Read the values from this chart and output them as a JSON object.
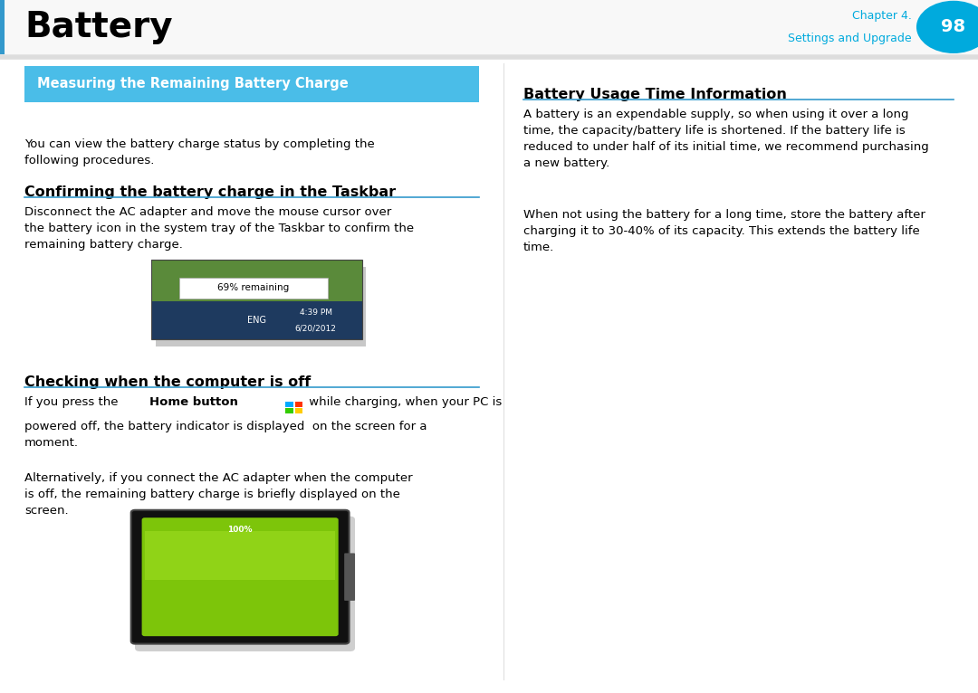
{
  "page_title": "Battery",
  "chapter_label": "Chapter 4.",
  "chapter_sub": "Settings and Upgrade",
  "page_num": "98",
  "header_title_color": "#000000",
  "chapter_text_color": "#00AADD",
  "page_num_bg": "#00AADD",
  "blue_banner_text": "Measuring the Remaining Battery Charge",
  "blue_banner_bg": "#4ABDE8",
  "section_line_color": "#3399CC",
  "bg_color": "#FFFFFF",
  "text_color": "#000000",
  "body_text_1": "You can view the battery charge status by completing the\nfollowing procedures.",
  "subheading_1": "Confirming the battery charge in the Taskbar",
  "body_text_2": "Disconnect the AC adapter and move the mouse cursor over\nthe battery icon in the system tray of the Taskbar to confirm the\nremaining battery charge.",
  "subheading_2": "Checking when the computer is off",
  "body_text_3a": "If you press the ",
  "body_text_3b": "Home button",
  "body_text_3c": " while charging, when your PC is\npowered off, the battery indicator is displayed  on the screen for a\nmoment.",
  "body_text_4": "Alternatively, if you connect the AC adapter when the computer\nis off, the remaining battery charge is briefly displayed on the\nscreen.",
  "right_subheading": "Battery Usage Time Information",
  "right_body_1": "A battery is an expendable supply, so when using it over a long\ntime, the capacity/battery life is shortened. If the battery life is\nreduced to under half of its initial time, we recommend purchasing\na new battery.",
  "right_body_2": "When not using the battery for a long time, store the battery after\ncharging it to 30-40% of its capacity. This extends the battery life\ntime.",
  "taskbar_tooltip": "69% remaining",
  "taskbar_time": "4:39 PM",
  "taskbar_date": "6/20/2012",
  "taskbar_lang": "ENG",
  "battery_label": "100%"
}
